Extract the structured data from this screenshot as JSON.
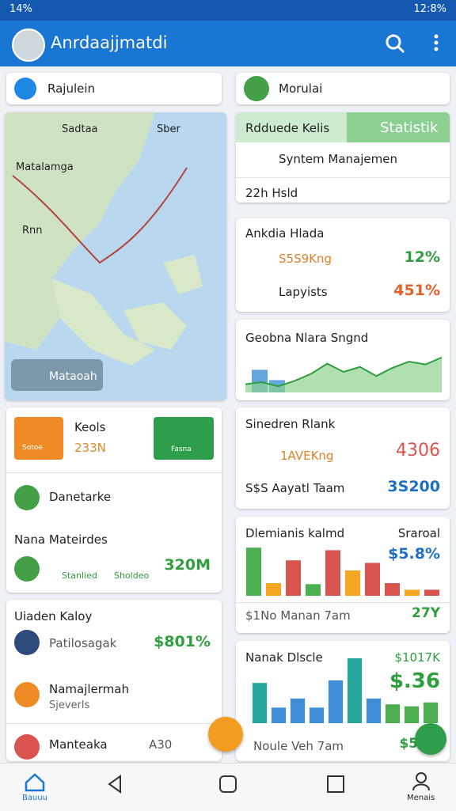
{
  "status_bar": {
    "battery": "14%",
    "time": "12:8%"
  },
  "app_bar": {
    "title": "Anrdaajjmatdi"
  },
  "left_search": {
    "text": "Rajulein"
  },
  "right_search": {
    "text": "Morulai"
  },
  "map": {
    "labels": [
      "Sadtaa",
      "Sber",
      "Matalamga",
      "Rnn"
    ],
    "button": "Mataoah"
  },
  "stats_card": {
    "title": "Rdduede Kelis",
    "badge": "Statistik",
    "rows": [
      "Syntem Manajemen",
      "22h Hsld"
    ]
  },
  "growth_card": {
    "title": "Ankdia Hlada",
    "rows": [
      {
        "label": "S5S9Kng",
        "value": "12%"
      },
      {
        "label": "Lapyists",
        "value": "451%"
      }
    ]
  },
  "trend_card": {
    "title": "Geobna Nlara Sngnd",
    "chart": {
      "ylim": [
        0,
        100
      ],
      "bar_values": [
        55,
        30
      ],
      "values": [
        20,
        25,
        15,
        28,
        45,
        70,
        50,
        62,
        40,
        60,
        75,
        68,
        85
      ]
    }
  },
  "action_card": {
    "button_1": {
      "title": "Keols",
      "value": "233N"
    },
    "button_1_small": "Sotoe",
    "button_2": "Fasna",
    "row": "Danetarke",
    "section": "Nana Mateirdes",
    "items": [
      "Stanlied",
      "Sholdeo"
    ],
    "total": "320M"
  },
  "rank_card": {
    "title": "Sinedren Rlank",
    "rows": [
      {
        "label": "1AVEKng",
        "value": "4306"
      },
      {
        "label": "S$S Aayatl Taam",
        "value": "3S200"
      }
    ]
  },
  "bars_card_1": {
    "title": "Dlemianis kalmd",
    "tag": "Sraroal",
    "value": "$5.8%",
    "footer": "$1No Manan 7am",
    "footer_value": "27Y",
    "chart": {
      "ylim": [
        0,
        100
      ],
      "values": [
        95,
        25,
        70,
        23,
        90,
        50,
        65,
        25,
        12,
        12
      ],
      "colors": [
        "#4caf50",
        "#f5a623",
        "#d9534f",
        "#4caf50",
        "#d9534f",
        "#f5a623",
        "#d9534f",
        "#d9534f",
        "#f5a623",
        "#d9534f"
      ]
    }
  },
  "list_card": {
    "title": "Uiaden Kaloy",
    "rows": [
      {
        "label": "Patilosagak",
        "value": "$801%"
      },
      {
        "label": "Namajlermah",
        "sub": "Sjeverls"
      },
      {
        "label": "Manteaka",
        "value": "A30"
      }
    ]
  },
  "bars_card_2": {
    "title": "Nanak Dlscle",
    "value_top": "$1017K",
    "value_big": "$.36",
    "footer": "Noule Veh 7am",
    "footer_value": "$5",
    "chart": {
      "ylim": [
        0,
        100
      ],
      "values": [
        62,
        24,
        38,
        24,
        66,
        100,
        38,
        29,
        26,
        32
      ],
      "colors": [
        "#26a69a",
        "#3f8fd8",
        "#3f8fd8",
        "#3f8fd8",
        "#3f8fd8",
        "#26a69a",
        "#3f8fd8",
        "#4caf50",
        "#4caf50",
        "#4caf50"
      ]
    }
  },
  "nav": {
    "home": "Bauuu",
    "profile": "Menais"
  }
}
